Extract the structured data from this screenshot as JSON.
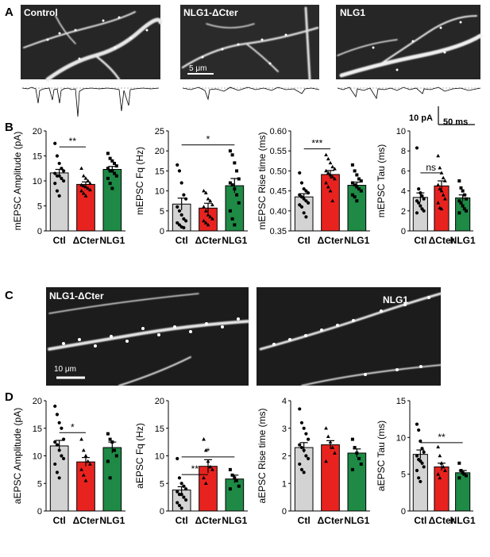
{
  "panel_labels": {
    "a": "A",
    "b": "B",
    "c": "C",
    "d": "D"
  },
  "images": {
    "a": [
      "Control",
      "NLG1-ΔCter",
      "NLG1"
    ],
    "a_scale": "5 μm",
    "c": [
      "NLG1-ΔCter",
      "NLG1"
    ],
    "c_scale": "10 μm"
  },
  "trace_scale": {
    "amp": "10 pA",
    "time": "50 ms"
  },
  "colors": {
    "ctl": "#d3d3d3",
    "dcter": "#e8231f",
    "nlg1": "#1e8a45"
  },
  "chart_data": [
    {
      "type": "bar",
      "row": "B",
      "ylabel": "mEPSC Amplitude (pA)",
      "ylim": [
        0,
        20
      ],
      "yticks": [
        0,
        5,
        10,
        15,
        20
      ],
      "yticklabels": [
        "0",
        "5",
        "10",
        "15",
        "20"
      ],
      "categories": [
        "Ctl",
        "ΔCter",
        "NLG1"
      ],
      "values": [
        11.6,
        9.3,
        12.3
      ],
      "errors": [
        0.7,
        0.5,
        0.6
      ],
      "points": [
        [
          17.5,
          15,
          13.5,
          12.5,
          12,
          11.5,
          11,
          11,
          10.5,
          10,
          9.5,
          8,
          7
        ],
        [
          12.5,
          11,
          10.5,
          10,
          9.5,
          9.2,
          9,
          8.8,
          8.5,
          8.2,
          8,
          7.5,
          7
        ],
        [
          15.5,
          14.5,
          14,
          13.5,
          13,
          12.5,
          12,
          12,
          11.5,
          11,
          10.5,
          9.5,
          8.5
        ]
      ],
      "sig": [
        {
          "from": 0,
          "to": 1,
          "label": "**",
          "y": 16.8
        }
      ]
    },
    {
      "type": "bar",
      "row": "B",
      "ylabel": "mEPSC Fq (Hz)",
      "ylim": [
        0,
        25
      ],
      "yticks": [
        0,
        5,
        10,
        15,
        20,
        25
      ],
      "yticklabels": [
        "0",
        "5",
        "10",
        "15",
        "20",
        "25"
      ],
      "categories": [
        "Ctl",
        "ΔCter",
        "NLG1"
      ],
      "values": [
        6.7,
        5.7,
        11.3
      ],
      "errors": [
        1.5,
        1.2,
        1.8
      ],
      "points": [
        [
          16.5,
          15,
          12,
          9,
          8,
          6,
          5,
          4,
          3,
          2.5,
          2,
          1.5,
          1,
          0.8
        ],
        [
          10,
          9.5,
          8,
          7.5,
          6.5,
          6,
          5,
          4,
          3.5,
          3,
          2.5,
          2,
          1.5
        ],
        [
          20,
          19,
          17,
          15,
          13,
          12,
          11.5,
          10.5,
          9,
          7,
          5,
          3,
          1.5
        ]
      ],
      "sig": [
        {
          "from": 0,
          "to": 2,
          "label": "*",
          "y": 21.5
        }
      ]
    },
    {
      "type": "bar",
      "row": "B",
      "ylabel": "mEPSC Rise time (ms)",
      "ylim": [
        0.35,
        0.6
      ],
      "yticks": [
        0.35,
        0.4,
        0.45,
        0.5,
        0.55,
        0.6
      ],
      "yticklabels": [
        "0.35",
        "0.40",
        "0.45",
        "0.50",
        "0.55",
        "0.60"
      ],
      "categories": [
        "Ctl",
        "ΔCter",
        "NLG1"
      ],
      "values": [
        0.435,
        0.491,
        0.464
      ],
      "errors": [
        0.008,
        0.01,
        0.008
      ],
      "points": [
        [
          0.495,
          0.47,
          0.455,
          0.45,
          0.445,
          0.44,
          0.435,
          0.43,
          0.425,
          0.42,
          0.415,
          0.41,
          0.395,
          0.385
        ],
        [
          0.54,
          0.53,
          0.52,
          0.51,
          0.505,
          0.5,
          0.495,
          0.49,
          0.485,
          0.48,
          0.47,
          0.46,
          0.45,
          0.425
        ],
        [
          0.515,
          0.5,
          0.49,
          0.48,
          0.475,
          0.47,
          0.465,
          0.46,
          0.455,
          0.45,
          0.44,
          0.435,
          0.425
        ]
      ],
      "sig": [
        {
          "from": 0,
          "to": 1,
          "label": "***",
          "y": 0.555
        }
      ]
    },
    {
      "type": "bar",
      "row": "B",
      "ylabel": "mEPSC Tau (ms)",
      "ylim": [
        0,
        10
      ],
      "yticks": [
        0,
        2,
        4,
        6,
        8,
        10
      ],
      "yticklabels": [
        "0",
        "2",
        "4",
        "6",
        "8",
        "10"
      ],
      "categories": [
        "Ctl",
        "ΔCter",
        "NLG1"
      ],
      "values": [
        3.35,
        4.5,
        3.3
      ],
      "errors": [
        0.45,
        0.5,
        0.3
      ],
      "points": [
        [
          8.3,
          4.2,
          3.8,
          3.5,
          3.2,
          3,
          2.8,
          2.5,
          2.2,
          2,
          1.8
        ],
        [
          7.5,
          6.3,
          5.8,
          5.3,
          5,
          4.6,
          4.2,
          4,
          3.6,
          3.2,
          2.8,
          2.3,
          2.2
        ],
        [
          5,
          4.3,
          4,
          3.6,
          3.2,
          3,
          2.8,
          2.5,
          2.2,
          2,
          1.8
        ]
      ],
      "sig": [
        {
          "from": 0,
          "to": 1,
          "label": "ns",
          "y": 5.8
        }
      ]
    },
    {
      "type": "bar",
      "row": "D",
      "ylabel": "aEPSC Amplitude (pA)",
      "ylim": [
        0,
        20
      ],
      "yticks": [
        0,
        5,
        10,
        15,
        20
      ],
      "yticklabels": [
        "0",
        "5",
        "10",
        "15",
        "20"
      ],
      "categories": [
        "Ctl",
        "ΔCter",
        "NLG1"
      ],
      "values": [
        11.8,
        8.9,
        11.5
      ],
      "errors": [
        1.0,
        0.8,
        1.0
      ],
      "points": [
        [
          19,
          17.5,
          16,
          15,
          13,
          12.5,
          12,
          11,
          10,
          9.5,
          8.5,
          7,
          6
        ],
        [
          13,
          11,
          10,
          9,
          8.5,
          7.5,
          6.5,
          5.5
        ],
        [
          14,
          13,
          12.5,
          11,
          10,
          9,
          6
        ]
      ],
      "sig": [
        {
          "from": 0,
          "to": 1,
          "label": "*",
          "y": 14.2
        }
      ]
    },
    {
      "type": "bar",
      "row": "D",
      "ylabel": "aEPSC Fq (Hz)",
      "ylim": [
        0,
        20
      ],
      "yticks": [
        0,
        5,
        10,
        15,
        20
      ],
      "yticklabels": [
        "0",
        "5",
        "10",
        "15",
        "20"
      ],
      "categories": [
        "Ctl",
        "ΔCter",
        "NLG1"
      ],
      "values": [
        3.8,
        8.1,
        5.8
      ],
      "errors": [
        0.6,
        1.2,
        0.7
      ],
      "points": [
        [
          9.5,
          6,
          5,
          4.5,
          4,
          3.5,
          3,
          3,
          2.5,
          2,
          1.5,
          1,
          0.5
        ],
        [
          13,
          11,
          9,
          8,
          7.5,
          6,
          5
        ],
        [
          7.5,
          6.5,
          6,
          5.5,
          4.5,
          4
        ]
      ],
      "sig": [
        {
          "from": 0,
          "to": 2,
          "label": "*",
          "y": 9.8
        },
        {
          "from": 0,
          "to": 1,
          "label": "**",
          "y": 6.6
        }
      ]
    },
    {
      "type": "bar",
      "row": "D",
      "ylabel": "aEPSC Rise time (ms)",
      "ylim": [
        0,
        4
      ],
      "yticks": [
        0,
        1,
        2,
        3,
        4
      ],
      "yticklabels": [
        "0",
        "1",
        "2",
        "3",
        "4"
      ],
      "categories": [
        "Ctl",
        "ΔCter",
        "NLG1"
      ],
      "values": [
        2.3,
        2.4,
        2.1
      ],
      "errors": [
        0.18,
        0.15,
        0.15
      ],
      "points": [
        [
          3.7,
          3.2,
          3,
          2.8,
          2.6,
          2.4,
          2.3,
          2.2,
          2,
          1.9,
          1.7,
          1.5,
          1.4
        ],
        [
          3,
          2.7,
          2.5,
          2.3,
          2.1,
          1.8
        ],
        [
          2.6,
          2.3,
          2.1,
          1.9,
          1.7,
          1.5
        ]
      ],
      "sig": []
    },
    {
      "type": "bar",
      "row": "D",
      "ylabel": "aEPSC Tau (ms)",
      "ylim": [
        0,
        15
      ],
      "yticks": [
        0,
        5,
        10,
        15
      ],
      "yticklabels": [
        "0",
        "5",
        "10",
        "15"
      ],
      "categories": [
        "Ctl",
        "ΔCter",
        "NLG1"
      ],
      "values": [
        7.7,
        6.0,
        5.2
      ],
      "errors": [
        0.6,
        0.5,
        0.3
      ],
      "points": [
        [
          11.8,
          11,
          9.5,
          8.5,
          8,
          7.5,
          7,
          6.8,
          6.5,
          6,
          5.5,
          4.5,
          4
        ],
        [
          8.7,
          7.5,
          6.5,
          6,
          5.5,
          5,
          4.5
        ],
        [
          6.5,
          5.5,
          5.2,
          5,
          4.8,
          4.5
        ]
      ],
      "sig": [
        {
          "from": 0,
          "to": 2,
          "label": "**",
          "y": 9.3
        }
      ]
    }
  ]
}
